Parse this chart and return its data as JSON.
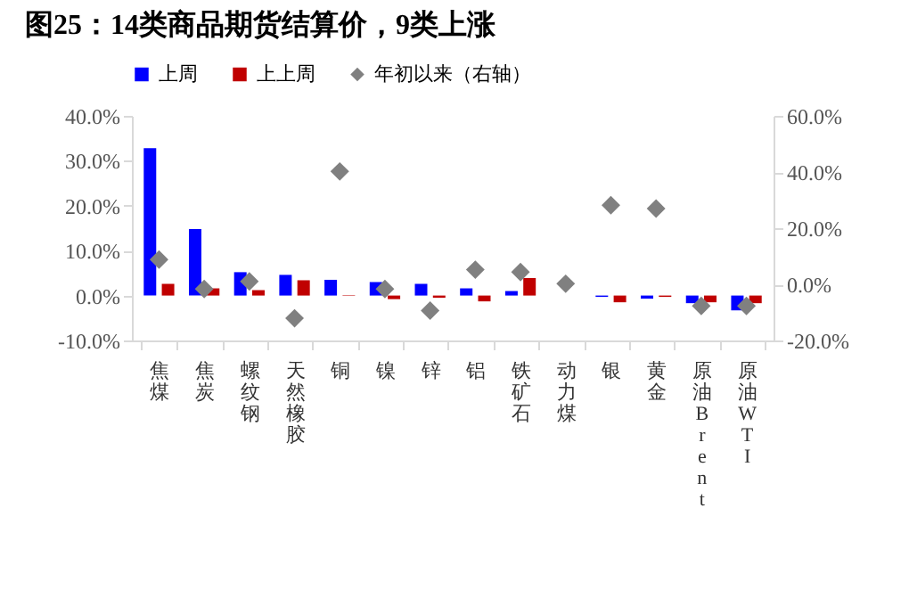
{
  "chart_data": {
    "type": "bar",
    "title": "图25：14类商品期货结算价，9类上涨",
    "categories": [
      "焦煤",
      "焦炭",
      "螺纹钢",
      "天然橡胶",
      "铜",
      "镍",
      "锌",
      "铝",
      "铁矿石",
      "动力煤",
      "银",
      "黄金",
      "原油Brent",
      "原油WTI"
    ],
    "series": [
      {
        "name": "上周",
        "type": "bar",
        "color": "#0000ff",
        "values": [
          32.8,
          14.8,
          5.2,
          4.6,
          3.5,
          3.0,
          2.6,
          1.6,
          1.0,
          0,
          -0.3,
          -0.7,
          -1.7,
          -3.3
        ]
      },
      {
        "name": "上上周",
        "type": "bar",
        "color": "#c00000",
        "values": [
          2.6,
          1.6,
          1.2,
          3.4,
          0.1,
          -0.8,
          -0.5,
          -1.3,
          3.9,
          0,
          -1.5,
          -0.3,
          -1.5,
          -1.7
        ]
      },
      {
        "name": "年初以来（右轴）",
        "type": "scatter",
        "axis": "y2",
        "color": "#808080",
        "values": [
          8.8,
          -1.7,
          1.0,
          -12.1,
          40.2,
          -1.7,
          -9.4,
          5.2,
          4.4,
          0.2,
          28.2,
          27.0,
          -7.7,
          -7.7
        ]
      }
    ],
    "marker": "diamond",
    "ylim": [
      -10,
      40
    ],
    "yticks": [
      {
        "value": -10,
        "label": "-10.0%"
      },
      {
        "value": 0,
        "label": "0.0%"
      },
      {
        "value": 10,
        "label": "10.0%"
      },
      {
        "value": 20,
        "label": "20.0%"
      },
      {
        "value": 30,
        "label": "30.0%"
      },
      {
        "value": 40,
        "label": "40.0%"
      }
    ],
    "y2lim": [
      -20,
      60
    ],
    "y2ticks": [
      {
        "value": -20,
        "label": "-20.0%"
      },
      {
        "value": 0,
        "label": "0.0%"
      },
      {
        "value": 20,
        "label": "20.0%"
      },
      {
        "value": 40,
        "label": "40.0%"
      },
      {
        "value": 60,
        "label": "60.0%"
      }
    ],
    "legend": "top"
  }
}
